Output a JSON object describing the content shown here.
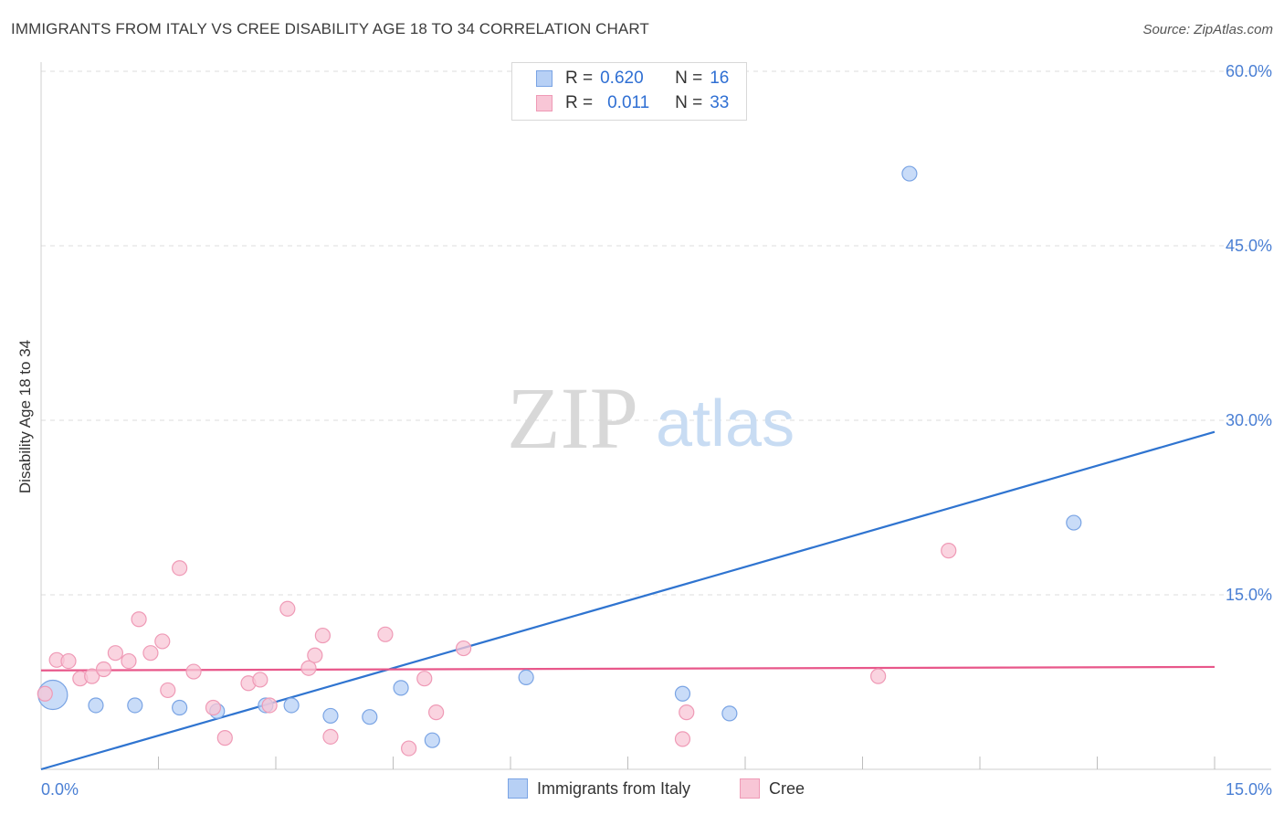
{
  "title": "IMMIGRANTS FROM ITALY VS CREE DISABILITY AGE 18 TO 34 CORRELATION CHART",
  "source": "Source: ZipAtlas.com",
  "watermark": {
    "zip": "ZIP",
    "atlas": "atlas"
  },
  "legend": {
    "italy": {
      "r_label": "R =",
      "r_value": "0.620",
      "n_label": "N =",
      "n_value": "16"
    },
    "cree": {
      "r_label": "R =",
      "r_value": "0.011",
      "n_label": "N =",
      "n_value": "33"
    }
  },
  "bottom_legend": {
    "italy": "Immigrants from Italy",
    "cree": "Cree"
  },
  "colors": {
    "italy_fill": "#b7d0f5",
    "italy_stroke": "#7aa4e4",
    "italy_line": "#2f74d0",
    "cree_fill": "#f8c6d6",
    "cree_stroke": "#ef9ab6",
    "cree_line": "#e8578a",
    "tick_text": "#4a7fd4"
  },
  "chart_data": {
    "type": "scatter",
    "title": "IMMIGRANTS FROM ITALY VS CREE DISABILITY AGE 18 TO 34 CORRELATION CHART",
    "xlabel": "",
    "ylabel": "Disability Age 18 to 34",
    "xlim": [
      0,
      15
    ],
    "ylim": [
      0,
      60
    ],
    "x_tick_labels": [
      "0.0%",
      "15.0%"
    ],
    "y_tick_labels": [
      "15.0%",
      "30.0%",
      "45.0%",
      "60.0%"
    ],
    "y_ticks": [
      15,
      30,
      45,
      60
    ],
    "grid": true,
    "series": [
      {
        "name": "Immigrants from Italy",
        "points": [
          [
            0.15,
            6.4
          ],
          [
            0.7,
            5.5
          ],
          [
            1.2,
            5.5
          ],
          [
            1.77,
            5.3
          ],
          [
            2.25,
            5.0
          ],
          [
            2.87,
            5.5
          ],
          [
            3.2,
            5.5
          ],
          [
            3.7,
            4.6
          ],
          [
            4.2,
            4.5
          ],
          [
            4.6,
            7.0
          ],
          [
            5.0,
            2.5
          ],
          [
            6.2,
            7.9
          ],
          [
            8.2,
            6.5
          ],
          [
            8.8,
            4.8
          ],
          [
            11.1,
            51.2
          ],
          [
            13.2,
            21.2
          ]
        ],
        "trend": [
          [
            0,
            0.0
          ],
          [
            15,
            29.0
          ]
        ]
      },
      {
        "name": "Cree",
        "points": [
          [
            0.05,
            6.5
          ],
          [
            0.2,
            9.4
          ],
          [
            0.35,
            9.3
          ],
          [
            0.5,
            7.8
          ],
          [
            0.65,
            8.0
          ],
          [
            0.8,
            8.6
          ],
          [
            0.95,
            10.0
          ],
          [
            1.12,
            9.3
          ],
          [
            1.25,
            12.9
          ],
          [
            1.4,
            10.0
          ],
          [
            1.55,
            11.0
          ],
          [
            1.62,
            6.8
          ],
          [
            1.77,
            17.3
          ],
          [
            1.95,
            8.4
          ],
          [
            2.2,
            5.3
          ],
          [
            2.35,
            2.7
          ],
          [
            2.65,
            7.4
          ],
          [
            2.8,
            7.7
          ],
          [
            2.92,
            5.5
          ],
          [
            3.15,
            13.8
          ],
          [
            3.42,
            8.7
          ],
          [
            3.5,
            9.8
          ],
          [
            3.6,
            11.5
          ],
          [
            3.7,
            2.8
          ],
          [
            4.4,
            11.6
          ],
          [
            4.7,
            1.8
          ],
          [
            4.9,
            7.8
          ],
          [
            5.05,
            4.9
          ],
          [
            5.4,
            10.4
          ],
          [
            8.2,
            2.6
          ],
          [
            8.25,
            4.9
          ],
          [
            10.7,
            8.0
          ],
          [
            11.6,
            18.8
          ]
        ],
        "trend": [
          [
            0,
            8.5
          ],
          [
            15,
            8.8
          ]
        ]
      }
    ],
    "big_point": {
      "series": "Immigrants from Italy",
      "x": 0.15,
      "y": 6.4
    }
  }
}
